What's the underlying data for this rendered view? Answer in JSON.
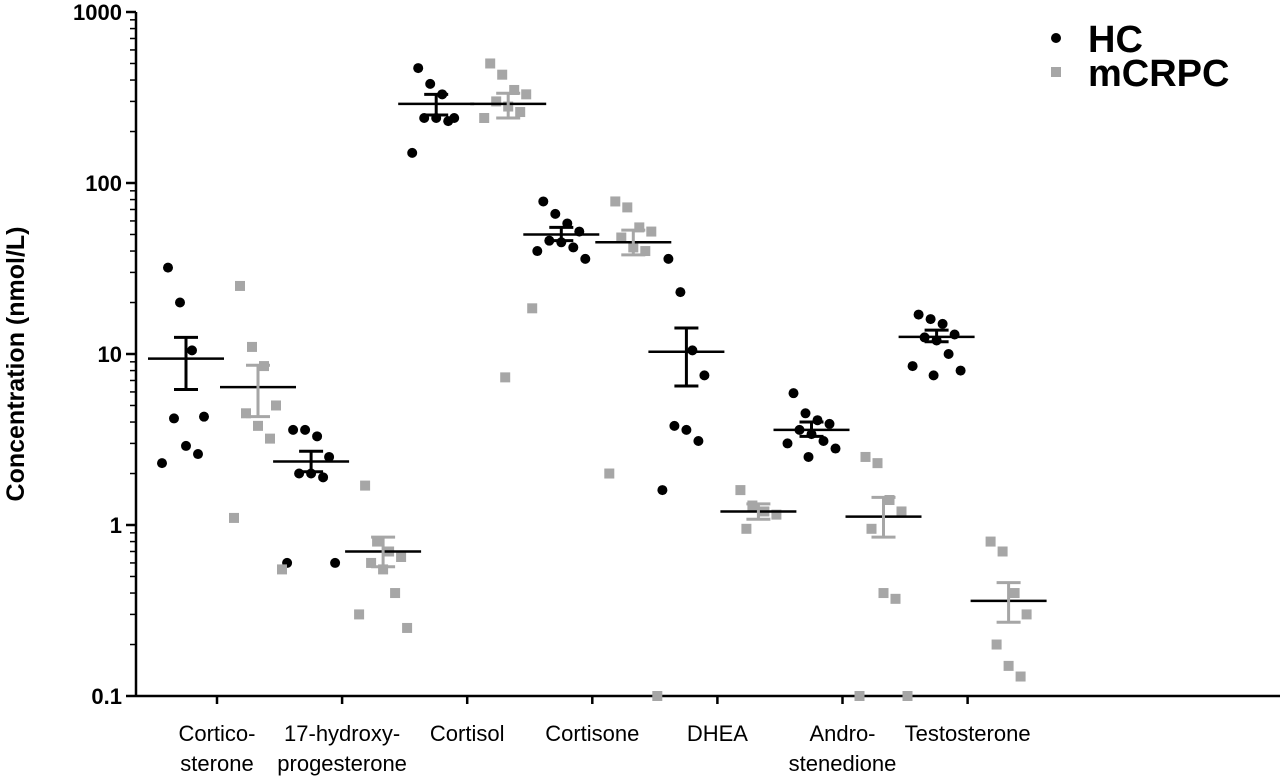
{
  "chart_data": {
    "type": "scatter",
    "title": "",
    "ylabel": "Concentration (nmol/L)",
    "xlabel": "",
    "yscale": "log",
    "ylim": [
      0.1,
      1000
    ],
    "yticks": [
      "0.1",
      "1",
      "10",
      "100",
      "1000"
    ],
    "categories": [
      [
        "Cortico-",
        "sterone"
      ],
      [
        "17-hydroxy-",
        "progesterone"
      ],
      [
        "Cortisol"
      ],
      [
        "Cortisone"
      ],
      [
        "DHEA"
      ],
      [
        "Andro-",
        "stenedione"
      ],
      [
        "Testosterone"
      ]
    ],
    "legend": {
      "position": "top-right"
    },
    "series": [
      {
        "name": "HC",
        "color": "#000000",
        "marker": "circle",
        "points": [
          [
            32,
            20,
            10.5,
            4.3,
            4.2,
            2.9,
            2.6,
            2.3
          ],
          [
            3.6,
            3.6,
            3.3,
            2.5,
            2.0,
            2.0,
            1.9,
            0.6,
            0.6
          ],
          [
            470,
            380,
            330,
            240,
            240,
            240,
            230,
            150
          ],
          [
            78,
            66,
            58,
            52,
            46,
            45,
            42,
            40,
            36
          ],
          [
            36,
            23,
            10.5,
            7.5,
            3.8,
            3.6,
            3.1,
            1.6
          ],
          [
            5.9,
            4.5,
            4.1,
            3.9,
            3.6,
            3.4,
            3.1,
            3.0,
            2.8,
            2.5
          ],
          [
            17,
            16,
            15,
            13,
            12.5,
            12,
            10,
            8.5,
            8.0,
            7.5
          ]
        ],
        "mean": [
          9.4,
          2.35,
          290,
          50,
          10.3,
          3.6,
          12.6
        ],
        "sem": [
          [
            6.2,
            12.5
          ],
          [
            2.05,
            2.7
          ],
          [
            250,
            330
          ],
          [
            46,
            55
          ],
          [
            6.5,
            14.2
          ],
          [
            3.3,
            4.0
          ],
          [
            11.8,
            13.8
          ]
        ]
      },
      {
        "name": "mCRPC",
        "color": "#a6a6a6",
        "marker": "square",
        "points": [
          [
            25,
            11,
            8.5,
            5.0,
            4.5,
            3.8,
            3.2,
            1.1,
            0.55
          ],
          [
            1.7,
            0.8,
            0.7,
            0.65,
            0.6,
            0.55,
            0.4,
            0.3,
            0.25
          ],
          [
            500,
            430,
            350,
            330,
            300,
            280,
            260,
            240,
            18.5,
            7.3
          ],
          [
            78,
            72,
            55,
            52,
            48,
            42,
            40,
            2.0,
            0.1
          ],
          [
            1.6,
            1.3,
            1.2,
            1.15,
            0.95
          ],
          [
            2.5,
            2.3,
            1.4,
            1.2,
            0.95,
            0.4,
            0.37,
            0.1,
            0.1
          ],
          [
            0.8,
            0.7,
            0.4,
            0.3,
            0.2,
            0.15,
            0.13
          ]
        ],
        "mean": [
          6.4,
          0.7,
          290,
          45,
          1.2,
          1.12,
          0.36
        ],
        "sem": [
          [
            4.3,
            8.6
          ],
          [
            0.57,
            0.85
          ],
          [
            240,
            335
          ],
          [
            38,
            53
          ],
          [
            1.08,
            1.33
          ],
          [
            0.85,
            1.45
          ],
          [
            0.27,
            0.46
          ]
        ]
      }
    ]
  }
}
